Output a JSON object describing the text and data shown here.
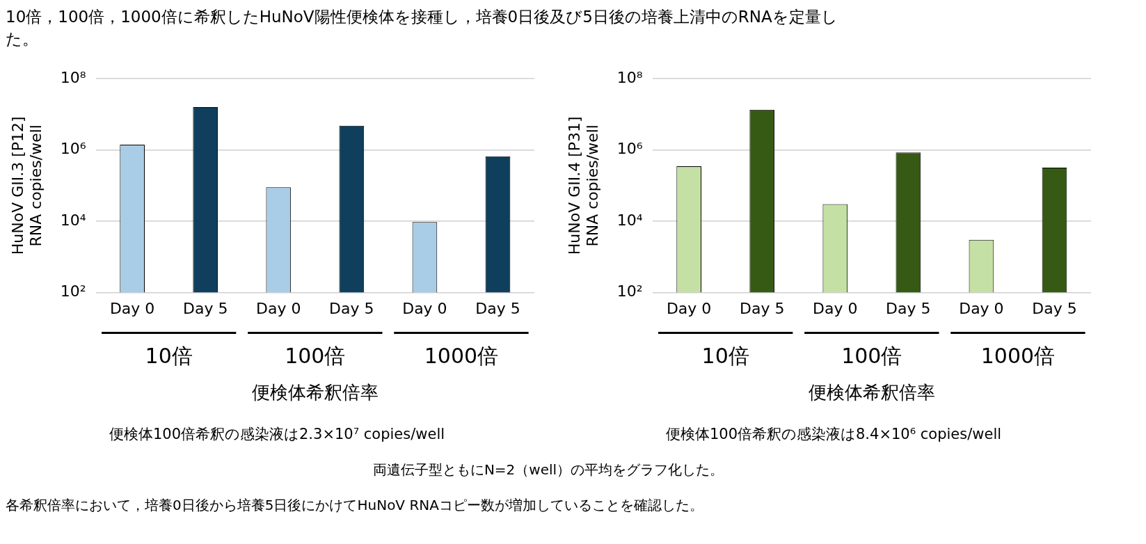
{
  "chart_data": [
    {
      "type": "bar",
      "title": "10倍，100倍，1000倍に希釈したHuNoV陽性便検体を接種し，培養0日後及び5日後の培養上清中のRNAを定量した。",
      "xlabel": "便検体希釈倍率",
      "ylabel": "HuNoV GII.3 [P12]\nRNA copies/well",
      "categories": [
        "Day 0",
        "Day 5",
        "Day 0",
        "Day 5",
        "Day 0",
        "Day 5"
      ],
      "values": [
        1400000,
        16000000,
        90000,
        4800000,
        9500,
        660000
      ],
      "colors": [
        "#a9cde6",
        "#0f3f5c",
        "#a9cde6",
        "#0f3f5c",
        "#a9cde6",
        "#0f3f5c"
      ],
      "log": true,
      "ylim": [
        100,
        100000000
      ],
      "yticks": [
        {
          "value": 100,
          "label": "10²"
        },
        {
          "value": 10000,
          "label": "10⁴"
        },
        {
          "value": 1000000,
          "label": "10⁶"
        },
        {
          "value": 100000000,
          "label": "10⁸"
        }
      ],
      "grid": "y",
      "annotations": [
        "10倍",
        "100倍",
        "1000倍",
        "便検体100倍希釈の感染液は2.3×10⁷ copies/well"
      ]
    },
    {
      "type": "bar",
      "xlabel": "便検体希釈倍率",
      "ylabel": "HuNoV GII.4 [P31]\nRNA copies/well",
      "categories": [
        "Day 0",
        "Day 5",
        "Day 0",
        "Day 5",
        "Day 0",
        "Day 5"
      ],
      "values": [
        350000,
        13500000,
        30000,
        850000,
        3000,
        320000
      ],
      "colors": [
        "#c5e0a5",
        "#365a14",
        "#c5e0a5",
        "#365a14",
        "#c5e0a5",
        "#365a14"
      ],
      "log": true,
      "ylim": [
        100,
        100000000
      ],
      "yticks": [
        {
          "value": 100,
          "label": "10²"
        },
        {
          "value": 10000,
          "label": "10⁴"
        },
        {
          "value": 1000000,
          "label": "10⁶"
        },
        {
          "value": 100000000,
          "label": "10⁸"
        }
      ],
      "grid": "y",
      "annotations": [
        "10倍",
        "100倍",
        "1000倍",
        "便検体100倍希釈の感染液は8.4×10⁶ copies/well",
        "両遺伝子型ともにN=2（well）の平均をグラフ化した。",
        "各希釈倍率において，培養0日後から培養5日後にかけてHuNoV RNAコピー数が増加していることを確認した。"
      ]
    }
  ]
}
